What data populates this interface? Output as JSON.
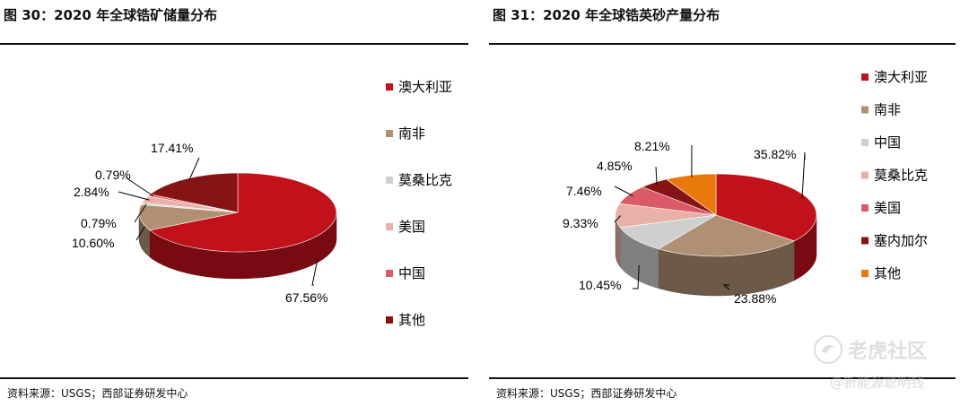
{
  "watermark": {
    "brand": "老虎社区",
    "handle": "@新能源聪明钱"
  },
  "chart_data": [
    {
      "type": "pie",
      "title": "图 30：2020 年全球锆矿储量分布",
      "source": "资料来源：USGS；西部证券研发中心",
      "legend_position": "right",
      "categories": [
        "澳大利亚",
        "南非",
        "莫桑比克",
        "美国",
        "中国",
        "其他"
      ],
      "values": [
        67.56,
        10.6,
        0.79,
        2.84,
        0.79,
        17.41
      ],
      "labels": [
        "67.56%",
        "10.60%",
        "0.79%",
        "2.84%",
        "0.79%",
        "17.41%"
      ],
      "colors": [
        "#C1121C",
        "#B09074",
        "#CFCFCF",
        "#E8B0A6",
        "#DB5A67",
        "#861414"
      ]
    },
    {
      "type": "pie",
      "title": "图 31：2020 年全球锆英砂产量分布",
      "source": "资料来源：USGS；西部证券研发中心",
      "legend_position": "right",
      "categories": [
        "澳大利亚",
        "南非",
        "中国",
        "莫桑比克",
        "美国",
        "塞内加尔",
        "其他"
      ],
      "values": [
        35.82,
        23.88,
        10.45,
        9.33,
        7.46,
        4.85,
        8.21
      ],
      "labels": [
        "35.82%",
        "23.88%",
        "10.45%",
        "9.33%",
        "7.46%",
        "4.85%",
        "8.21%"
      ],
      "colors": [
        "#C1121C",
        "#B09074",
        "#CFCFCF",
        "#E8B0A6",
        "#DB5A67",
        "#861414",
        "#E8780C"
      ]
    }
  ]
}
